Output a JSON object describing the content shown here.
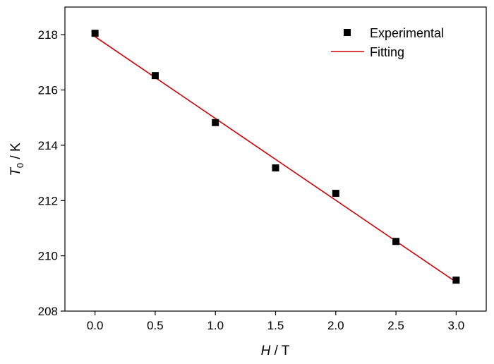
{
  "chart_data": {
    "type": "scatter",
    "xlabel": {
      "symbol": "H",
      "unit": " / T"
    },
    "ylabel": {
      "symbol": "T",
      "subscript": "0",
      "unit": " / K"
    },
    "xlim": [
      -0.25,
      3.25
    ],
    "ylim": [
      208,
      219
    ],
    "xticks": [
      "0.0",
      "0.5",
      "1.0",
      "1.5",
      "2.0",
      "2.5",
      "3.0"
    ],
    "yticks": [
      "208",
      "210",
      "212",
      "214",
      "216",
      "218"
    ],
    "grid": false,
    "legend_position": "top-right",
    "series": [
      {
        "name": "Experimental",
        "kind": "points",
        "marker": "square",
        "color": "#000000",
        "x": [
          0.0,
          0.5,
          1.0,
          1.5,
          2.0,
          2.5,
          3.0
        ],
        "y": [
          218.05,
          216.52,
          214.82,
          213.18,
          212.26,
          210.52,
          209.12
        ]
      },
      {
        "name": "Fitting",
        "kind": "line",
        "color": "#cc0000",
        "x": [
          0.0,
          3.0
        ],
        "y": [
          217.93,
          209.05
        ]
      }
    ]
  }
}
